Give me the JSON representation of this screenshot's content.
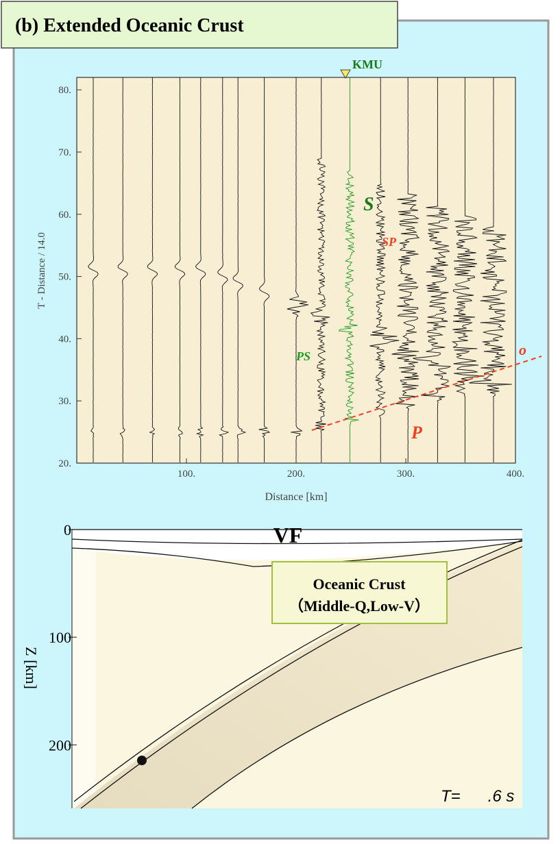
{
  "title": "(b) Extended Oceanic Crust",
  "record_section": {
    "station": "KMU",
    "xlabel": "Distance [km]",
    "ylabel": "T - Distance / 14.0",
    "xlim": [
      0,
      400
    ],
    "ylim": [
      20,
      82
    ],
    "xticks": [
      {
        "value": 100,
        "label": "100."
      },
      {
        "value": 200,
        "label": "200."
      },
      {
        "value": 300,
        "label": "300."
      },
      {
        "value": 400,
        "label": "400."
      }
    ],
    "yticks": [
      {
        "value": 20,
        "label": "20."
      },
      {
        "value": 30,
        "label": "30."
      },
      {
        "value": 40,
        "label": "40."
      },
      {
        "value": 50,
        "label": "50."
      },
      {
        "value": 60,
        "label": "60."
      },
      {
        "value": 70,
        "label": "70."
      },
      {
        "value": 80,
        "label": "80."
      }
    ],
    "phases": {
      "S": "S",
      "SP": "SP",
      "PS": "PS",
      "P": "P",
      "o": "o"
    }
  },
  "model": {
    "title": "VF",
    "ylabel": "Z [km]",
    "ylim": [
      0,
      259
    ],
    "yticks": [
      0,
      100,
      200
    ],
    "box": [
      "Oceanic Crust",
      "（Middle-Q,Low-V）"
    ],
    "time_label": "T=      .6 s"
  }
}
